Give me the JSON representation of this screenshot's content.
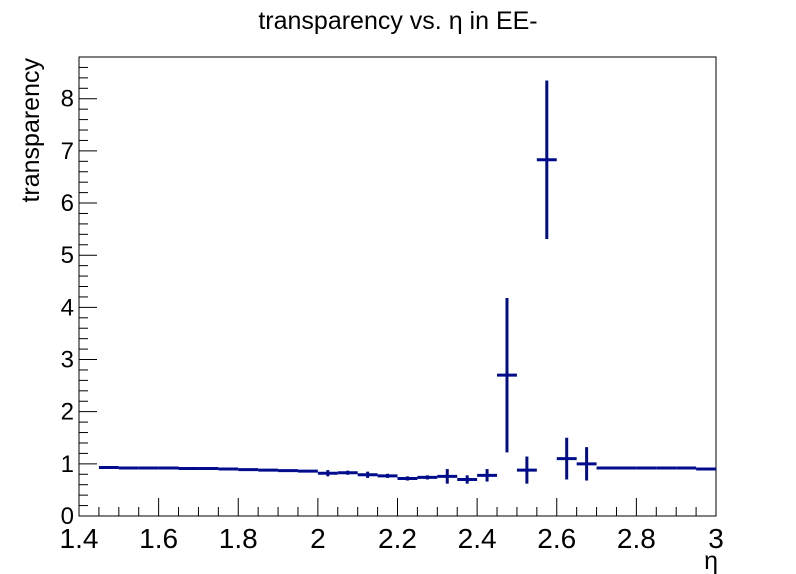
{
  "chart_data": {
    "type": "scatter",
    "title": "transparency vs. η in EE-",
    "xlabel": "η",
    "ylabel": "transparency",
    "xlim": [
      1.4,
      3.0
    ],
    "ylim": [
      0,
      8.8
    ],
    "x_ticks": [
      1.4,
      1.6,
      1.8,
      2.0,
      2.2,
      2.4,
      2.6,
      2.8,
      3.0
    ],
    "x_tick_labels": [
      "1.4",
      "1.6",
      "1.8",
      "2",
      "2.2",
      "2.4",
      "2.6",
      "2.8",
      "3"
    ],
    "y_ticks": [
      0,
      1,
      2,
      3,
      4,
      5,
      6,
      7,
      8
    ],
    "y_tick_labels": [
      "0",
      "1",
      "2",
      "3",
      "4",
      "5",
      "6",
      "7",
      "8"
    ],
    "grid": false,
    "legend": "none",
    "color": "#000c8c",
    "bin_width": 0.05,
    "points": [
      {
        "x": 1.475,
        "y": 0.93,
        "err": 0.01
      },
      {
        "x": 1.525,
        "y": 0.92,
        "err": 0.01
      },
      {
        "x": 1.575,
        "y": 0.92,
        "err": 0.01
      },
      {
        "x": 1.625,
        "y": 0.92,
        "err": 0.01
      },
      {
        "x": 1.675,
        "y": 0.91,
        "err": 0.01
      },
      {
        "x": 1.725,
        "y": 0.91,
        "err": 0.01
      },
      {
        "x": 1.775,
        "y": 0.9,
        "err": 0.01
      },
      {
        "x": 1.825,
        "y": 0.89,
        "err": 0.01
      },
      {
        "x": 1.875,
        "y": 0.88,
        "err": 0.01
      },
      {
        "x": 1.925,
        "y": 0.87,
        "err": 0.02
      },
      {
        "x": 1.975,
        "y": 0.86,
        "err": 0.02
      },
      {
        "x": 2.025,
        "y": 0.82,
        "err": 0.06
      },
      {
        "x": 2.075,
        "y": 0.83,
        "err": 0.04
      },
      {
        "x": 2.125,
        "y": 0.79,
        "err": 0.06
      },
      {
        "x": 2.175,
        "y": 0.77,
        "err": 0.04
      },
      {
        "x": 2.225,
        "y": 0.72,
        "err": 0.04
      },
      {
        "x": 2.275,
        "y": 0.74,
        "err": 0.04
      },
      {
        "x": 2.325,
        "y": 0.76,
        "err": 0.14
      },
      {
        "x": 2.375,
        "y": 0.7,
        "err": 0.08
      },
      {
        "x": 2.425,
        "y": 0.78,
        "err": 0.12
      },
      {
        "x": 2.475,
        "y": 2.7,
        "err": 1.48
      },
      {
        "x": 2.525,
        "y": 0.88,
        "err": 0.26
      },
      {
        "x": 2.575,
        "y": 6.83,
        "err": 1.52
      },
      {
        "x": 2.625,
        "y": 1.1,
        "err": 0.4
      },
      {
        "x": 2.675,
        "y": 1.0,
        "err": 0.32
      },
      {
        "x": 2.725,
        "y": 0.92,
        "err": 0.02
      },
      {
        "x": 2.775,
        "y": 0.92,
        "err": 0.01
      },
      {
        "x": 2.825,
        "y": 0.92,
        "err": 0.01
      },
      {
        "x": 2.875,
        "y": 0.92,
        "err": 0.01
      },
      {
        "x": 2.925,
        "y": 0.92,
        "err": 0.01
      },
      {
        "x": 2.975,
        "y": 0.9,
        "err": 0.02
      }
    ]
  }
}
